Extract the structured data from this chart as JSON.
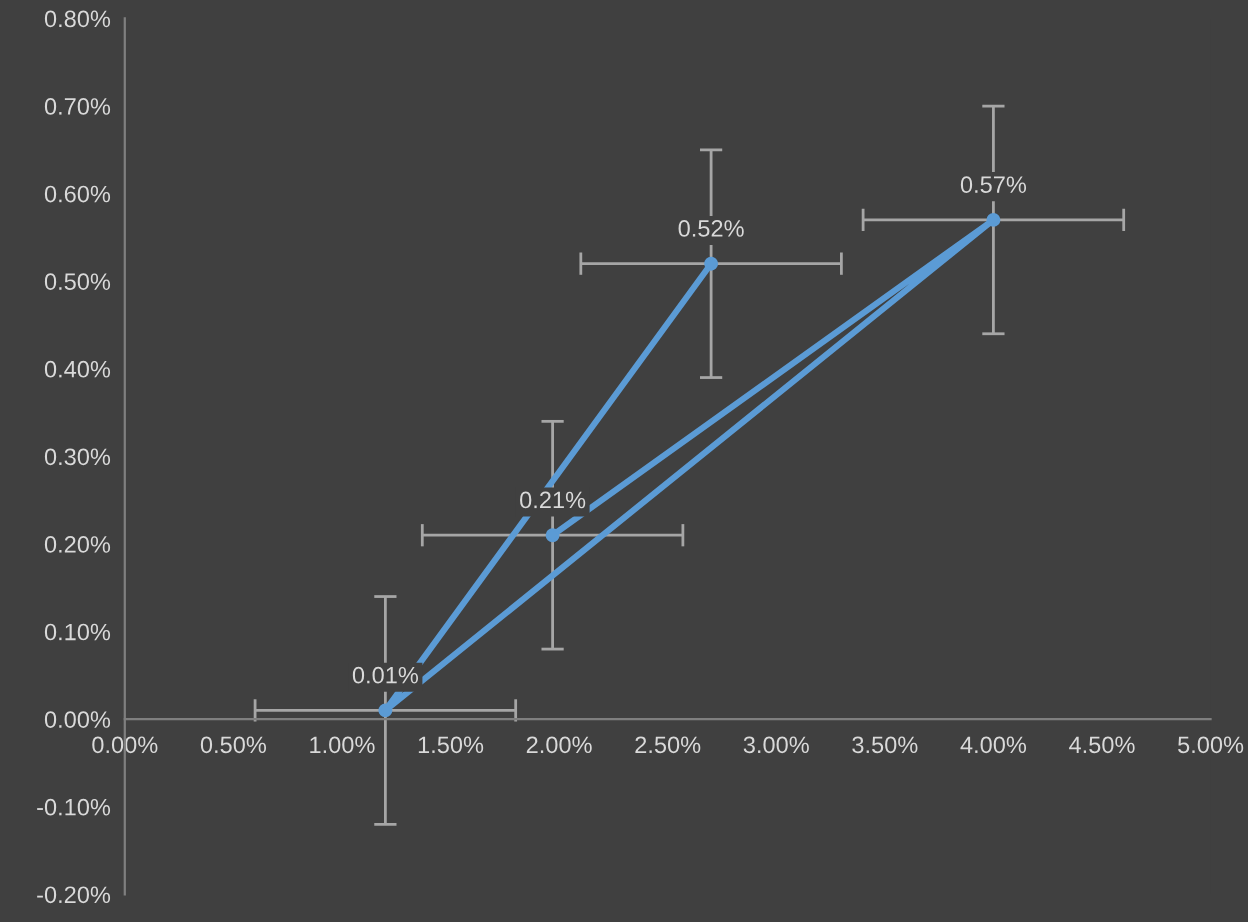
{
  "chart_data": {
    "type": "line",
    "xlim": [
      0,
      5
    ],
    "xticks": [
      {
        "value": 0,
        "label": "0.00%"
      },
      {
        "value": 0.5,
        "label": "0.50%"
      },
      {
        "value": 1,
        "label": "1.00%"
      },
      {
        "value": 1.5,
        "label": "1.50%"
      },
      {
        "value": 2,
        "label": "2.00%"
      },
      {
        "value": 2.5,
        "label": "2.50%"
      },
      {
        "value": 3,
        "label": "3.00%"
      },
      {
        "value": 3.5,
        "label": "3.50%"
      },
      {
        "value": 4,
        "label": "4.00%"
      },
      {
        "value": 4.5,
        "label": "4.50%"
      },
      {
        "value": 5,
        "label": "5.00%"
      }
    ],
    "ylim": [
      -0.2,
      0.8
    ],
    "yticks": [
      {
        "value": -0.2,
        "label": "-0.20%"
      },
      {
        "value": -0.1,
        "label": "-0.10%"
      },
      {
        "value": 0,
        "label": "0.00%"
      },
      {
        "value": 0.1,
        "label": "0.10%"
      },
      {
        "value": 0.2,
        "label": "0.20%"
      },
      {
        "value": 0.3,
        "label": "0.30%"
      },
      {
        "value": 0.4,
        "label": "0.40%"
      },
      {
        "value": 0.5,
        "label": "0.50%"
      },
      {
        "value": 0.6,
        "label": "0.60%"
      },
      {
        "value": 0.7,
        "label": "0.70%"
      },
      {
        "value": 0.8,
        "label": "0.80%"
      }
    ],
    "grid": false,
    "marker": "circle",
    "line_style": "solid",
    "series": [
      {
        "color": "#5b9bd5",
        "x": [
          2.7,
          1.2,
          4.0,
          1.97
        ],
        "values": [
          0.52,
          0.01,
          0.57,
          0.21
        ],
        "errors": [
          0.13,
          0.13,
          0.13,
          0.13
        ],
        "xerrors": [
          0.6,
          0.6,
          0.6,
          0.6
        ],
        "value_labels": [
          "0.52%",
          "0.01%",
          "0.57%",
          "0.21%"
        ]
      }
    ]
  }
}
